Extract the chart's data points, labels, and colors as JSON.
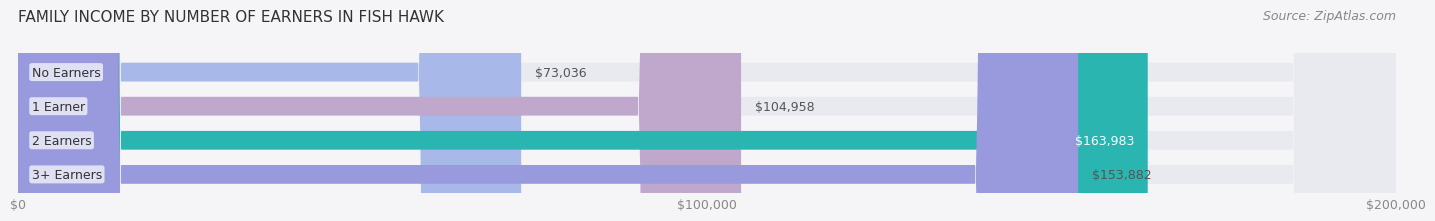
{
  "title": "FAMILY INCOME BY NUMBER OF EARNERS IN FISH HAWK",
  "source": "Source: ZipAtlas.com",
  "categories": [
    "No Earners",
    "1 Earner",
    "2 Earners",
    "3+ Earners"
  ],
  "values": [
    73036,
    104958,
    163983,
    153882
  ],
  "bar_colors": [
    "#a8b8e8",
    "#c0a8cc",
    "#2ab5b0",
    "#9999dd"
  ],
  "track_color": "#e8eaf0",
  "label_colors": [
    "#555555",
    "#555555",
    "#ffffff",
    "#ffffff"
  ],
  "max_value": 200000,
  "xticks": [
    0,
    100000,
    200000
  ],
  "xtick_labels": [
    "$0",
    "$100,000",
    "$200,000"
  ],
  "title_fontsize": 11,
  "source_fontsize": 9,
  "tick_fontsize": 9,
  "label_fontsize": 9,
  "bar_height": 0.55,
  "background_color": "#f5f5f8"
}
